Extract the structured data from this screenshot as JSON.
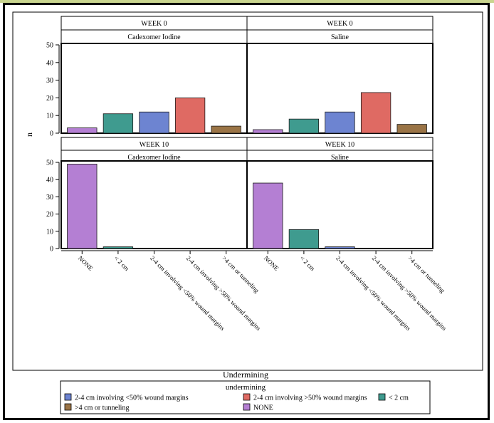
{
  "chart_data": {
    "type": "bar",
    "ylabel": "n",
    "xlabel": "Undermining",
    "ylim": [
      0,
      50
    ],
    "yticks": [
      0,
      10,
      20,
      30,
      40,
      50
    ],
    "categories": [
      "NONE",
      "< 2 cm",
      "2-4 cm involving <50% wound margins",
      "2-4 cm involving >50% wound margins",
      ">4 cm or tunneling"
    ],
    "category_colors": [
      "#b47fd3",
      "#3f9b8f",
      "#6d84d1",
      "#df6a63",
      "#9a7446"
    ],
    "legend": {
      "title": "undermining",
      "placement": "bottom",
      "entries": [
        {
          "label": "2-4 cm involving <50% wound margins",
          "color": "#6d84d1"
        },
        {
          "label": "2-4 cm involving >50% wound margins",
          "color": "#df6a63"
        },
        {
          "label": "< 2 cm",
          "color": "#3f9b8f"
        },
        {
          "label": ">4 cm or tunneling",
          "color": "#9a7446"
        },
        {
          "label": "NONE",
          "color": "#b47fd3"
        }
      ]
    },
    "panels": [
      {
        "week": "WEEK 0",
        "treatment": "Cadexomer Iodine",
        "values": [
          3,
          11,
          12,
          20,
          4
        ]
      },
      {
        "week": "WEEK 0",
        "treatment": "Saline",
        "values": [
          2,
          8,
          12,
          23,
          5
        ]
      },
      {
        "week": "WEEK 10",
        "treatment": "Cadexomer Iodine",
        "values": [
          49,
          1,
          0,
          0,
          0
        ]
      },
      {
        "week": "WEEK 10",
        "treatment": "Saline",
        "values": [
          38,
          11,
          1,
          0,
          0
        ]
      }
    ]
  }
}
